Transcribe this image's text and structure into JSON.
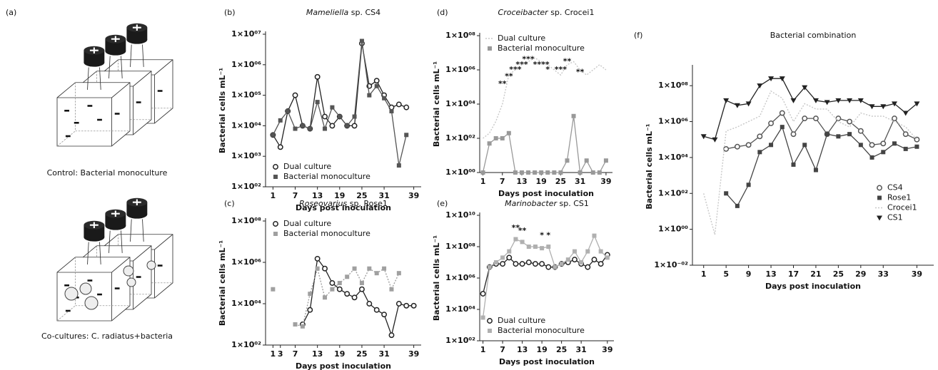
{
  "panel_a": {
    "label": "(a)",
    "captions": [
      "Control: Bacterial monoculture",
      "Co-cultures: C. radiatus+bacteria"
    ]
  },
  "chart_data": [
    {
      "type": "line",
      "panel": "(b)",
      "title": "Mameliella sp. CS4",
      "xlabel": "Days post inoculation",
      "ylabel": "Bacterial cells mL⁻¹",
      "yscale": "log",
      "legend": "lower left",
      "x": [
        1,
        3,
        5,
        7,
        9,
        11,
        13,
        15,
        17,
        19,
        21,
        23,
        25,
        27,
        29,
        31,
        33,
        35,
        37,
        39
      ],
      "xlim": [
        -1,
        41
      ],
      "xticks": [
        1,
        7,
        13,
        19,
        25,
        31,
        39
      ],
      "ylim": [
        100,
        10000000
      ],
      "yticks": [
        {
          "value": 100,
          "label": "1×10⁰²"
        },
        {
          "value": 1000,
          "label": "1×10⁰³"
        },
        {
          "value": 10000,
          "label": "1×10⁰⁴"
        },
        {
          "value": 100000,
          "label": "1×10⁰⁵"
        },
        {
          "value": 1000000,
          "label": "1×10⁰⁶"
        },
        {
          "value": 10000000,
          "label": "1×10⁰⁷"
        }
      ],
      "series": [
        {
          "name": "Dual culture",
          "color": "#222222",
          "marker": "circle",
          "linestyle": "solid",
          "values": [
            5000,
            2000,
            30000,
            100000,
            10000,
            8000,
            400000,
            20000,
            10000,
            20000,
            10000,
            10000,
            5000000,
            200000,
            300000,
            100000,
            40000,
            50000,
            40000,
            null
          ]
        },
        {
          "name": "Bacterial monoculture",
          "color": "#555555",
          "marker": "square",
          "linestyle": "solid",
          "values": [
            5000,
            15000,
            30000,
            8000,
            10000,
            8000,
            60000,
            8000,
            40000,
            20000,
            10000,
            20000,
            6000000,
            100000,
            200000,
            80000,
            30000,
            500,
            5000,
            null
          ]
        }
      ]
    },
    {
      "type": "line",
      "panel": "(c)",
      "title": "Roseovarius sp. Rose1",
      "xlabel": "Days post inoculation",
      "ylabel": "Bacterial cells mL⁻¹",
      "yscale": "log",
      "legend": "upper left",
      "x": [
        1,
        3,
        5,
        7,
        9,
        11,
        13,
        15,
        17,
        19,
        21,
        23,
        25,
        27,
        29,
        31,
        33,
        35,
        37,
        39
      ],
      "xlim": [
        -1,
        41
      ],
      "xticks": [
        1,
        3,
        7,
        13,
        19,
        25,
        31,
        39
      ],
      "ylim": [
        100,
        100000000
      ],
      "yticks": [
        {
          "value": 100,
          "label": "1×10⁰²"
        },
        {
          "value": 10000,
          "label": "1×10⁰⁴"
        },
        {
          "value": 1000000,
          "label": "1×10⁰⁶"
        },
        {
          "value": 100000000,
          "label": "1×10⁰⁸"
        }
      ],
      "series": [
        {
          "name": "Dual culture",
          "color": "#222222",
          "marker": "circle",
          "linestyle": "solid",
          "values": [
            null,
            null,
            null,
            null,
            1000,
            5000,
            1500000,
            500000,
            100000,
            50000,
            30000,
            20000,
            50000,
            10000,
            5000,
            3000,
            300,
            10000,
            8000,
            8000
          ]
        },
        {
          "name": "Bacterial monoculture",
          "color": "#a0a0a0",
          "marker": "square",
          "linestyle": "dotted",
          "values": [
            50000,
            null,
            null,
            1000,
            800,
            30000,
            500000,
            20000,
            50000,
            100000,
            200000,
            500000,
            100000,
            500000,
            300000,
            500000,
            50000,
            300000,
            null,
            null
          ]
        }
      ]
    },
    {
      "type": "line",
      "panel": "(d)",
      "title": "Croceibacter sp. Crocei1",
      "xlabel": "Days post inoculation",
      "ylabel": "Bacterial cells mL⁻¹",
      "yscale": "log",
      "legend": "upper left",
      "x": [
        1,
        3,
        5,
        7,
        9,
        11,
        13,
        15,
        17,
        19,
        21,
        23,
        25,
        27,
        29,
        31,
        33,
        35,
        37,
        39
      ],
      "xlim": [
        0,
        41
      ],
      "xticks": [
        1,
        7,
        13,
        19,
        25,
        31,
        39
      ],
      "ylim": [
        1,
        100000000
      ],
      "yticks": [
        {
          "value": 1,
          "label": "1×10⁰⁰"
        },
        {
          "value": 100,
          "label": "1×10⁰²"
        },
        {
          "value": 10000,
          "label": "1×10⁰⁴"
        },
        {
          "value": 1000000,
          "label": "1×10⁰⁶"
        },
        {
          "value": 100000000,
          "label": "1×10⁰⁸"
        }
      ],
      "series": [
        {
          "name": "Dual culture",
          "color": "#c8c8c8",
          "marker": "none",
          "linestyle": "dotted",
          "values": [
            100,
            200,
            1000,
            10000,
            500000,
            1000000,
            2000000,
            3000000,
            5000000,
            3000000,
            2000000,
            1000000,
            500000,
            2000000,
            3000000,
            1000000,
            500000,
            1000000,
            2000000,
            1000000
          ]
        },
        {
          "name": "Bacterial monoculture",
          "color": "#999999",
          "marker": "square",
          "linestyle": "solid",
          "values": [
            1,
            50,
            100,
            100,
            200,
            1,
            1,
            1,
            1,
            1,
            1,
            1,
            1,
            5,
            2000,
            1,
            5,
            1,
            1,
            5
          ]
        }
      ],
      "annotations": [
        {
          "text": "**",
          "x": 7,
          "y": 150000
        },
        {
          "text": "**",
          "x": 9,
          "y": 400000
        },
        {
          "text": "***",
          "x": 11,
          "y": 1000000
        },
        {
          "text": "***",
          "x": 13,
          "y": 2000000
        },
        {
          "text": "***",
          "x": 15,
          "y": 4000000
        },
        {
          "text": "****",
          "x": 19,
          "y": 2000000
        },
        {
          "text": "*",
          "x": 21,
          "y": 1000000
        },
        {
          "text": "***",
          "x": 25,
          "y": 1000000
        },
        {
          "text": "**",
          "x": 27,
          "y": 3000000
        },
        {
          "text": "**",
          "x": 31,
          "y": 700000
        }
      ]
    },
    {
      "type": "line",
      "panel": "(e)",
      "title": "Marinobacter sp. CS1",
      "xlabel": "Days post inoculation",
      "ylabel": "Bacterial cells mL⁻¹",
      "yscale": "log",
      "legend": "lower left",
      "x": [
        1,
        3,
        5,
        7,
        9,
        11,
        13,
        15,
        17,
        19,
        21,
        23,
        25,
        27,
        29,
        31,
        33,
        35,
        37,
        39
      ],
      "xlim": [
        0,
        41
      ],
      "xticks": [
        1,
        7,
        13,
        19,
        25,
        31,
        39
      ],
      "ylim": [
        100,
        10000000000
      ],
      "yticks": [
        {
          "value": 100,
          "label": "1×10⁰²"
        },
        {
          "value": 10000,
          "label": "1×10⁰⁴"
        },
        {
          "value": 1000000,
          "label": "1×10⁰⁶"
        },
        {
          "value": 100000000,
          "label": "1×10⁰⁸"
        },
        {
          "value": 10000000000,
          "label": "1×10¹⁰"
        }
      ],
      "series": [
        {
          "name": "Dual culture",
          "color": "#222222",
          "marker": "circle",
          "linestyle": "solid",
          "values": [
            100000,
            5000000,
            8000000,
            8000000,
            20000000,
            8000000,
            8000000,
            10000000,
            8000000,
            8000000,
            5000000,
            5000000,
            8000000,
            10000000,
            15000000,
            8000000,
            5000000,
            15000000,
            8000000,
            30000000
          ]
        },
        {
          "name": "Bacterial monoculture",
          "color": "#b0b0b0",
          "marker": "square",
          "linestyle": "solid",
          "values": [
            3000,
            5000000,
            10000000,
            20000000,
            50000000,
            300000000,
            200000000,
            100000000,
            100000000,
            80000000,
            100000000,
            5000000,
            8000000,
            15000000,
            50000000,
            10000000,
            50000000,
            500000000,
            50000000,
            20000000
          ]
        }
      ],
      "annotations": [
        {
          "text": "**",
          "x": 11,
          "y": 1500000000
        },
        {
          "text": "**",
          "x": 13,
          "y": 1000000000
        },
        {
          "text": "*",
          "x": 19,
          "y": 500000000
        },
        {
          "text": "*",
          "x": 21,
          "y": 500000000
        }
      ]
    },
    {
      "type": "line",
      "panel": "(f)",
      "title": "Bacterial combination",
      "xlabel": "Days post inoculation",
      "ylabel": "Bacterial cells mL⁻¹",
      "yscale": "log",
      "legend": "center right",
      "x": [
        1,
        3,
        5,
        7,
        9,
        11,
        13,
        15,
        17,
        19,
        21,
        23,
        25,
        27,
        29,
        31,
        33,
        35,
        37,
        39
      ],
      "xlim": [
        -1,
        42
      ],
      "xticks": [
        1,
        5,
        9,
        13,
        17,
        21,
        25,
        29,
        33,
        39
      ],
      "ylim": [
        0.01,
        1000000000
      ],
      "yticks": [
        {
          "value": 0.01,
          "label": "1×10⁻⁰²"
        },
        {
          "value": 1,
          "label": "1×10⁰⁰"
        },
        {
          "value": 100,
          "label": "1×10⁰²"
        },
        {
          "value": 10000,
          "label": "1×10⁰⁴"
        },
        {
          "value": 1000000,
          "label": "1×10⁰⁶"
        },
        {
          "value": 100000000,
          "label": "1×10⁰⁸"
        }
      ],
      "series": [
        {
          "name": "CS4",
          "color": "#555555",
          "marker": "circle",
          "linestyle": "solid",
          "values": [
            null,
            null,
            30000,
            40000,
            50000,
            150000,
            800000,
            3000000,
            200000,
            1500000,
            1500000,
            200000,
            1500000,
            1000000,
            300000,
            50000,
            60000,
            1500000,
            200000,
            100000
          ]
        },
        {
          "name": "Rose1",
          "color": "#444444",
          "marker": "square",
          "linestyle": "solid",
          "values": [
            null,
            null,
            100,
            20,
            300,
            20000,
            50000,
            500000,
            4000,
            50000,
            2000,
            200000,
            150000,
            200000,
            50000,
            10000,
            20000,
            60000,
            30000,
            40000
          ]
        },
        {
          "name": "Crocei1",
          "color": "#c8c8c8",
          "marker": "none",
          "linestyle": "dotted",
          "values": [
            100,
            0.5,
            300000,
            500000,
            1000000,
            2000000,
            50000000,
            20000000,
            1000000,
            10000000,
            5000000,
            5000000,
            1000000,
            500000,
            3000000,
            2000000,
            2000000,
            1000000,
            500000,
            100000
          ]
        },
        {
          "name": "CS1",
          "color": "#222222",
          "marker": "triangle",
          "linestyle": "solid",
          "values": [
            150000,
            100000,
            15000000,
            8000000,
            10000000,
            100000000,
            250000000,
            250000000,
            15000000,
            80000000,
            15000000,
            12000000,
            15000000,
            15000000,
            15000000,
            7000000,
            7000000,
            10000000,
            3000000,
            10000000
          ]
        }
      ]
    }
  ]
}
